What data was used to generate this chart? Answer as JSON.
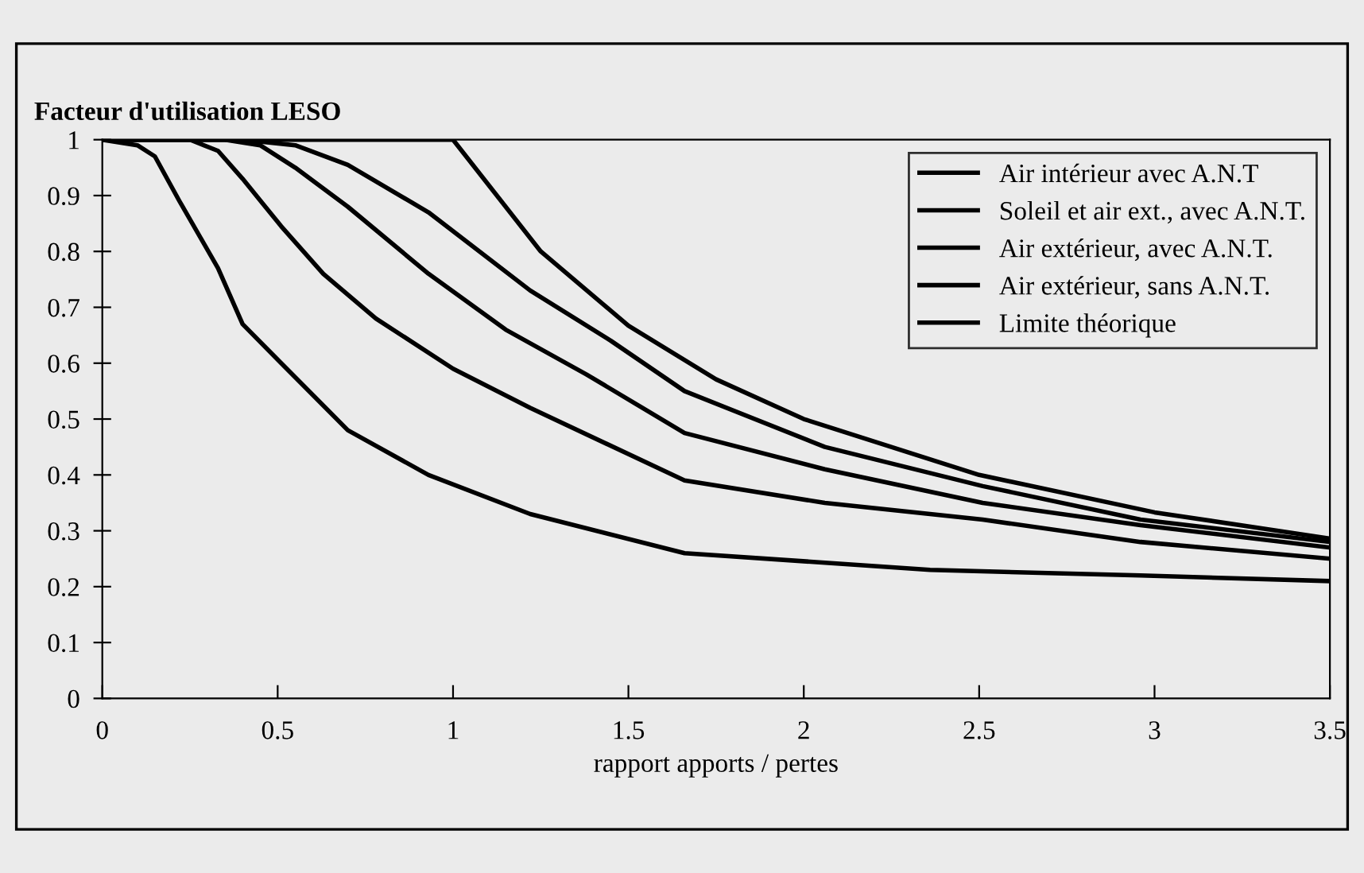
{
  "chart_data": {
    "type": "line",
    "ylabel": "Facteur d'utilisation LESO",
    "xlabel": "rapport apports / pertes",
    "xlim": [
      0,
      3.5
    ],
    "ylim": [
      0,
      1
    ],
    "xticks": [
      0,
      0.5,
      1,
      1.5,
      2,
      2.5,
      3,
      3.5
    ],
    "yticks": [
      0,
      0.1,
      0.2,
      0.3,
      0.4,
      0.5,
      0.6,
      0.7,
      0.8,
      0.9,
      1
    ],
    "grid": false,
    "legend": "top right",
    "marker": "none",
    "line_style": "solid",
    "series": [
      {
        "name": "Air intérieur avec A.N.T",
        "color": "#000000",
        "x": [
          0,
          0.4,
          0.55,
          0.7,
          0.93,
          1.22,
          1.45,
          1.66,
          2.06,
          2.51,
          2.96,
          3.5
        ],
        "values": [
          1,
          1,
          0.99,
          0.955,
          0.87,
          0.73,
          0.64,
          0.55,
          0.45,
          0.38,
          0.32,
          0.28
        ]
      },
      {
        "name": "Soleil et air ext., avec A.N.T.",
        "color": "#000000",
        "x": [
          0,
          0.35,
          0.45,
          0.55,
          0.7,
          0.93,
          1.15,
          1.38,
          1.66,
          2.06,
          2.51,
          2.96,
          3.5
        ],
        "values": [
          1,
          1,
          0.99,
          0.95,
          0.88,
          0.76,
          0.66,
          0.58,
          0.475,
          0.41,
          0.35,
          0.31,
          0.27
        ]
      },
      {
        "name": "Air extérieur, avec A.N.T.",
        "color": "#000000",
        "x": [
          0,
          0.25,
          0.33,
          0.4,
          0.51,
          0.63,
          0.78,
          1.0,
          1.22,
          1.66,
          2.06,
          2.51,
          2.96,
          3.5
        ],
        "values": [
          1,
          1,
          0.98,
          0.93,
          0.845,
          0.76,
          0.68,
          0.59,
          0.52,
          0.39,
          0.35,
          0.32,
          0.28,
          0.25
        ]
      },
      {
        "name": "Air extérieur, sans A.N.T.",
        "color": "#000000",
        "x": [
          0,
          0.1,
          0.15,
          0.22,
          0.33,
          0.4,
          0.51,
          0.7,
          0.93,
          1.22,
          1.66,
          2.36,
          2.96,
          3.5
        ],
        "values": [
          1,
          0.99,
          0.97,
          0.89,
          0.77,
          0.67,
          0.6,
          0.48,
          0.4,
          0.33,
          0.26,
          0.23,
          0.22,
          0.21
        ]
      },
      {
        "name": "Limite théorique",
        "color": "#000000",
        "x": [
          0,
          1,
          1.25,
          1.5,
          1.75,
          2,
          2.5,
          3,
          3.5
        ],
        "values": [
          1,
          1,
          0.8,
          0.667,
          0.571,
          0.5,
          0.4,
          0.333,
          0.286
        ]
      }
    ]
  }
}
